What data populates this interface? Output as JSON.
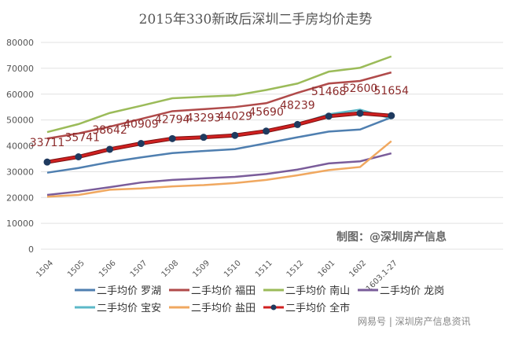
{
  "chart_data": {
    "type": "line",
    "title": "2015年330新政后深圳二手房均价走势",
    "categories": [
      "1504",
      "1505",
      "1506",
      "1507",
      "1508",
      "1509",
      "1510",
      "1511",
      "1512",
      "1601",
      "1602",
      "1603.1-27"
    ],
    "ylim": [
      0,
      80000
    ],
    "yticks": [
      0,
      10000,
      20000,
      30000,
      40000,
      50000,
      60000,
      70000,
      80000
    ],
    "grid": true,
    "legend_position": "bottom",
    "series": [
      {
        "name": "二手均价 罗湖",
        "color": "#4f7fb0",
        "values": [
          29600,
          31400,
          33700,
          35500,
          37200,
          38000,
          38700,
          41000,
          43300,
          45500,
          46300,
          51000
        ]
      },
      {
        "name": "二手均价 福田",
        "color": "#b04a4a",
        "values": [
          42800,
          44800,
          47400,
          50400,
          53400,
          54200,
          55000,
          56500,
          60500,
          64100,
          65100,
          68400
        ]
      },
      {
        "name": "二手均价 南山",
        "color": "#9bbb59",
        "values": [
          45300,
          48400,
          52700,
          55500,
          58400,
          59000,
          59500,
          61600,
          64100,
          68700,
          70200,
          74600
        ]
      },
      {
        "name": "二手均价 龙岗",
        "color": "#7a5c9a",
        "values": [
          21000,
          22300,
          24000,
          25800,
          26800,
          27400,
          28000,
          29100,
          30800,
          33200,
          34000,
          37100
        ]
      },
      {
        "name": "二手均价 宝安",
        "color": "#5cb8c8",
        "values": [
          33900,
          35900,
          38800,
          41100,
          43000,
          43500,
          44200,
          45900,
          48400,
          52200,
          54000,
          50500
        ]
      },
      {
        "name": "二手均价 盐田",
        "color": "#f0a860",
        "values": [
          20300,
          21000,
          23000,
          23500,
          24300,
          24800,
          25600,
          26800,
          28600,
          30600,
          31800,
          41800
        ]
      },
      {
        "name": "二手均价 全市",
        "color": "#d02020",
        "marker_color": "#1f3a5f",
        "values": [
          33711,
          35741,
          38642,
          40909,
          42794,
          43293,
          44029,
          45690,
          48239,
          51468,
          52600,
          51654
        ],
        "data_labels": true
      }
    ],
    "annotation": "制图：@深圳房产信息"
  },
  "watermark": "网易号 | 深圳房产信息资讯"
}
